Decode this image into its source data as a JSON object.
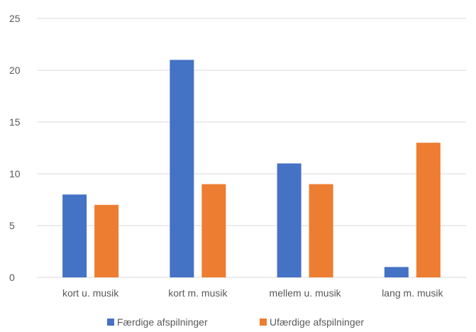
{
  "chart_data": {
    "type": "bar",
    "categories": [
      "kort u. musik",
      "kort m. musik",
      "mellem u. musik",
      "lang m. musik"
    ],
    "series": [
      {
        "name": "Færdige afspilninger",
        "values": [
          8,
          21,
          11,
          1
        ],
        "color": "#4472C4"
      },
      {
        "name": "Ufærdige afspilninger",
        "values": [
          7,
          9,
          9,
          13
        ],
        "color": "#ED7D31"
      }
    ],
    "title": "",
    "xlabel": "",
    "ylabel": "",
    "ylim": [
      0,
      25
    ],
    "yticks": [
      0,
      5,
      10,
      15,
      20,
      25
    ],
    "grid": true,
    "legend_position": "bottom",
    "gridline_color": "#D9D9D9"
  }
}
